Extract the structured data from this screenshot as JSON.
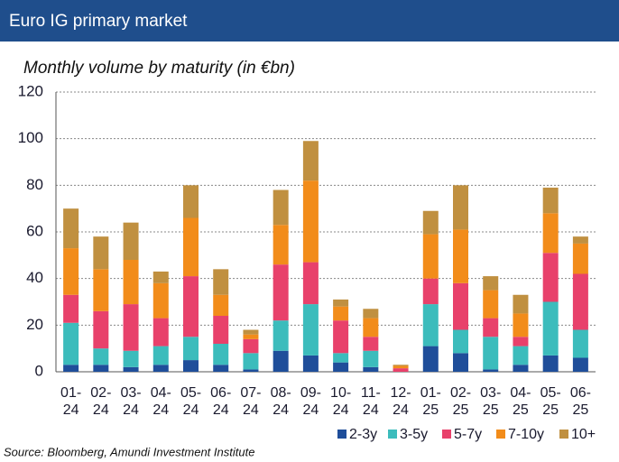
{
  "header": {
    "title": "Euro IG primary market"
  },
  "chart_data": {
    "type": "bar",
    "stacked": true,
    "title": "Monthly volume by maturity (in €bn)",
    "source": "Source: Bloomberg, Amundi Investment Institute",
    "categories": [
      "01- 24",
      "02- 24",
      "03- 24",
      "04- 24",
      "05- 24",
      "06- 24",
      "07- 24",
      "08- 24",
      "09- 24",
      "10- 24",
      "11- 24",
      "12- 24",
      "01- 25",
      "02- 25",
      "03- 25",
      "04- 25",
      "05- 25",
      "06- 25"
    ],
    "series": [
      {
        "name": "2-3y",
        "color": "#1f4e9a",
        "values": [
          3,
          3,
          2,
          3,
          5,
          3,
          1,
          9,
          7,
          4,
          2,
          0,
          11,
          8,
          1,
          3,
          7,
          6
        ]
      },
      {
        "name": "3-5y",
        "color": "#3cbcbc",
        "values": [
          18,
          7,
          7,
          8,
          10,
          9,
          7,
          13,
          22,
          4,
          7,
          0,
          18,
          10,
          14,
          8,
          23,
          12
        ]
      },
      {
        "name": "5-7y",
        "color": "#e8416b",
        "values": [
          12,
          16,
          20,
          12,
          26,
          12,
          6,
          24,
          18,
          14,
          6,
          1.5,
          11,
          20,
          8,
          4,
          21,
          24
        ]
      },
      {
        "name": "7-10y",
        "color": "#f28c1a",
        "values": [
          20,
          18,
          19,
          15,
          25,
          9,
          2,
          17,
          35,
          6,
          8,
          1,
          19,
          23,
          12,
          10,
          17,
          13
        ]
      },
      {
        "name": "10+",
        "color": "#c09040",
        "values": [
          17,
          14,
          16,
          5,
          14,
          11,
          2,
          15,
          17,
          3,
          4,
          0.5,
          10,
          19,
          6,
          8,
          11,
          3
        ]
      }
    ],
    "ylim": [
      0,
      120
    ],
    "yticks": [
      0,
      20,
      40,
      60,
      80,
      100,
      120
    ],
    "grid": true,
    "legend": "bottom-right"
  }
}
